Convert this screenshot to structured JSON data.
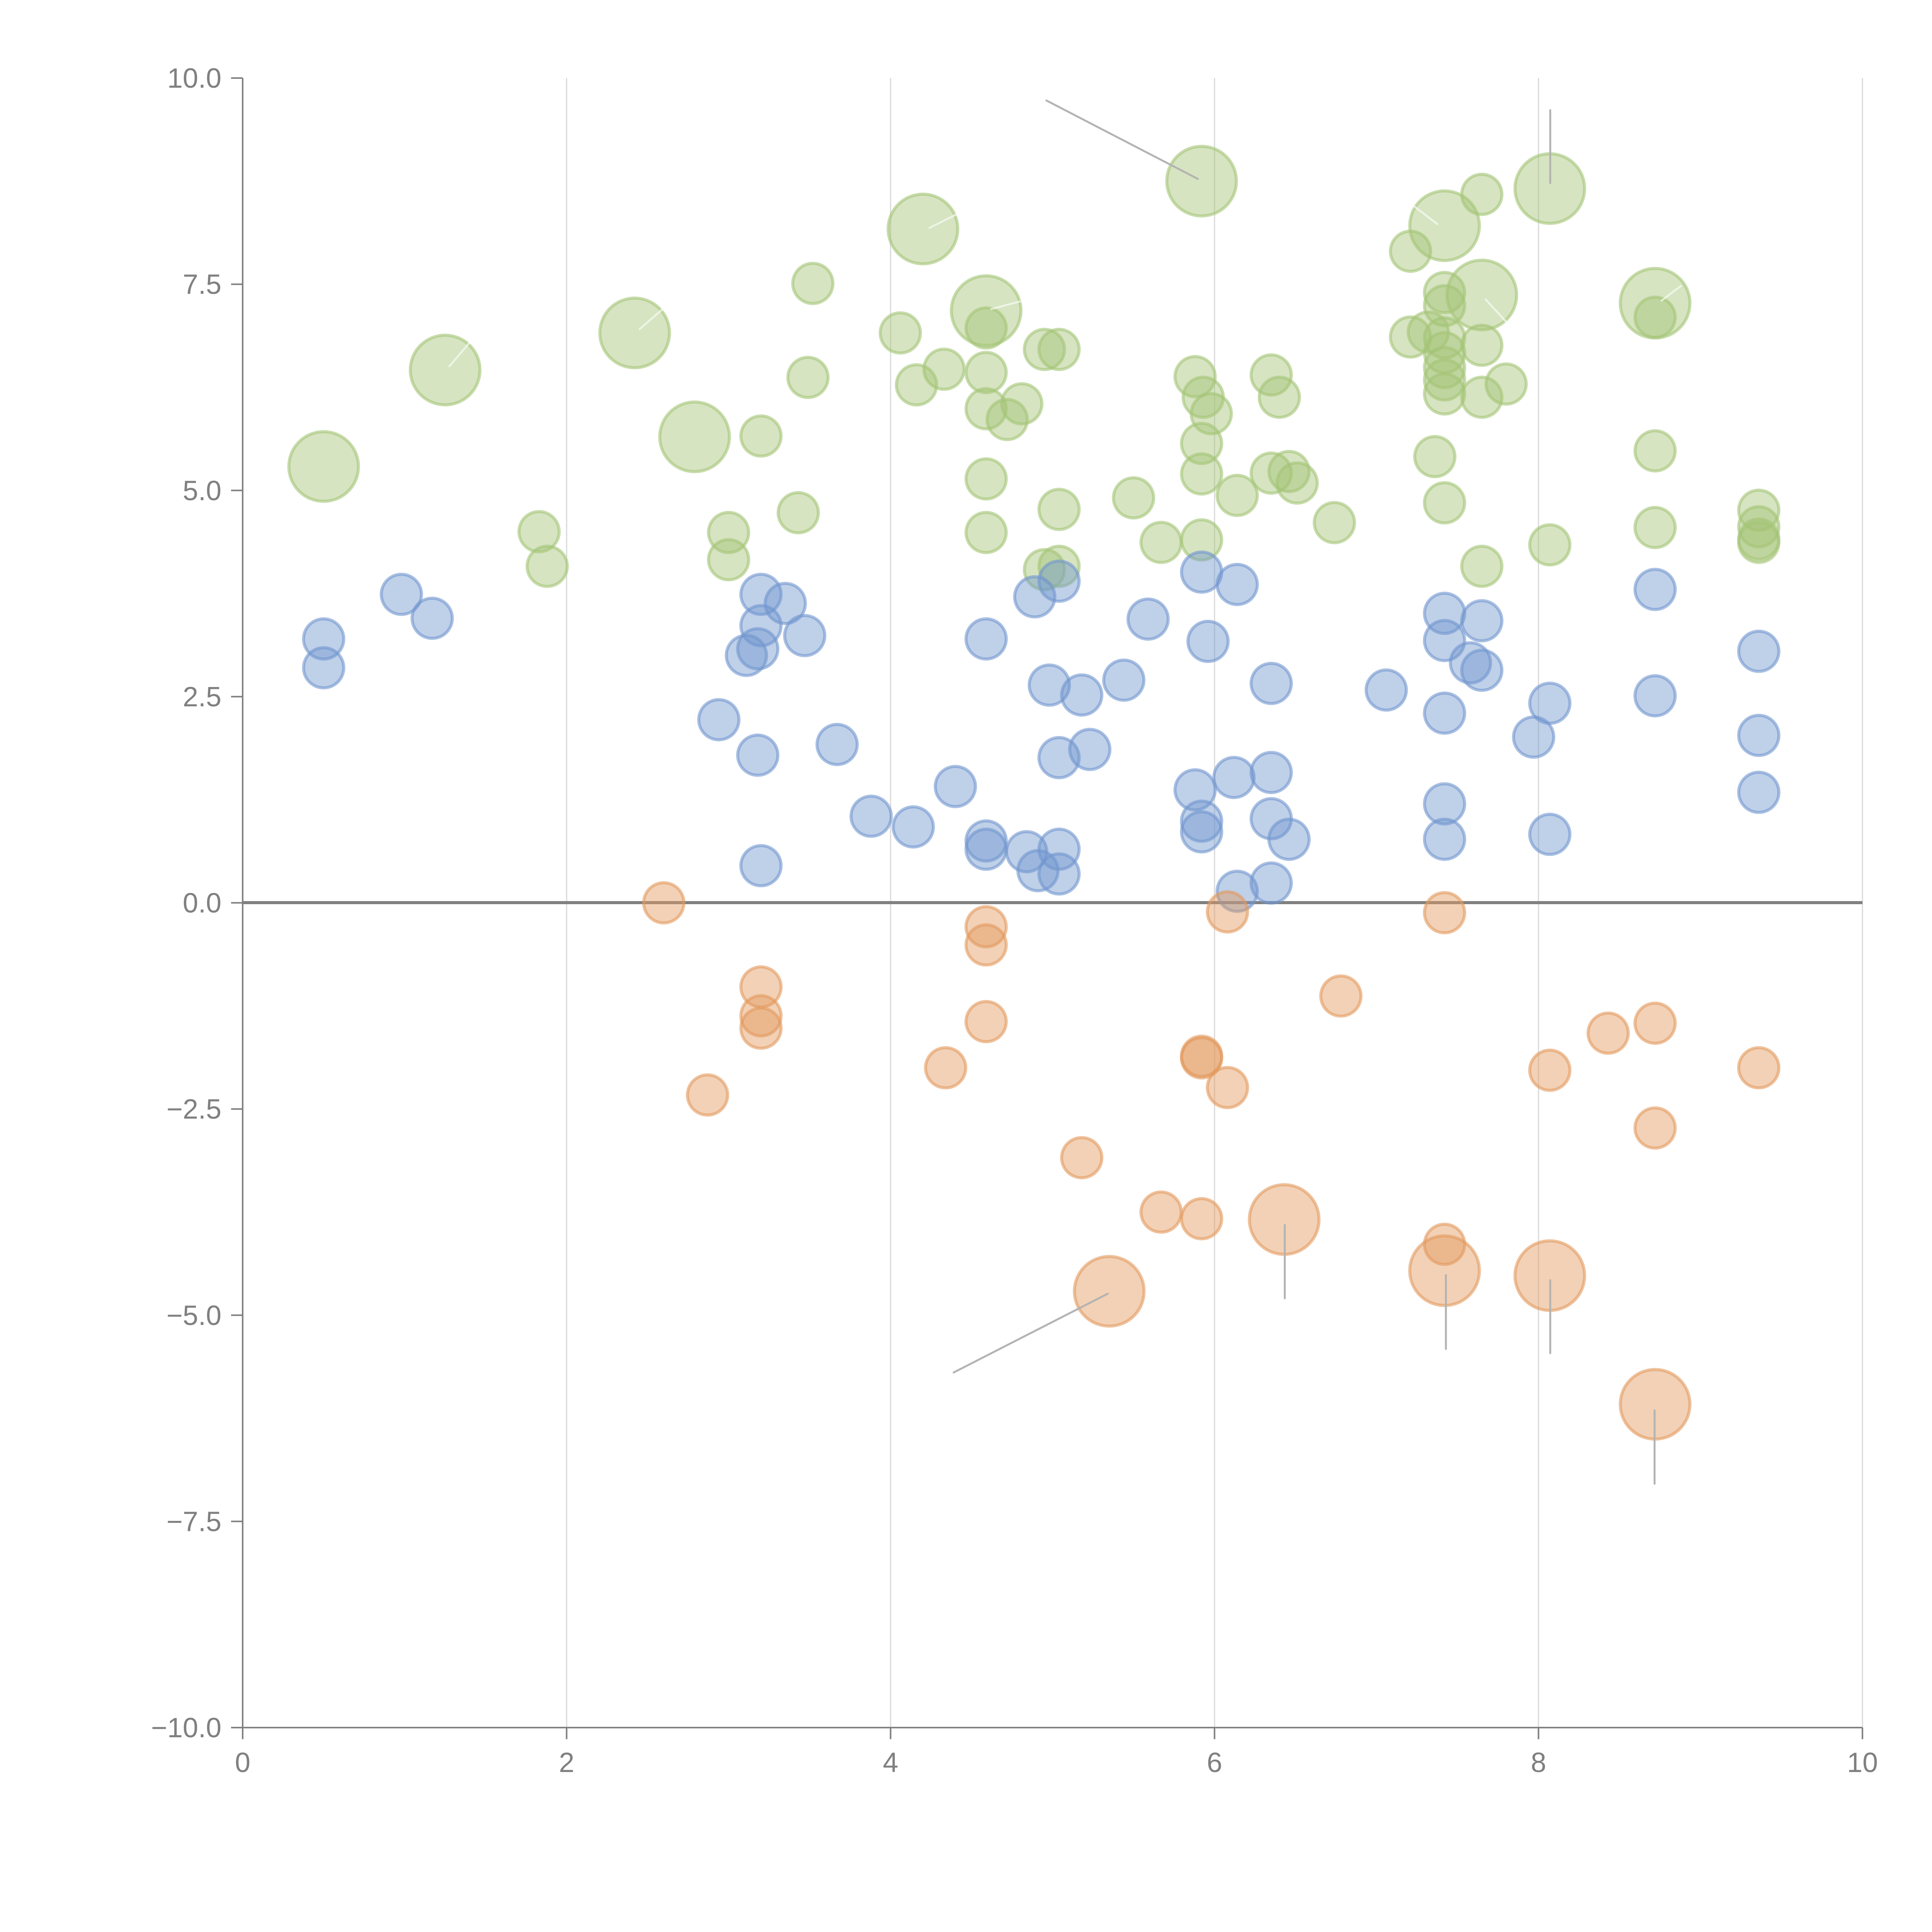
{
  "chart_data": {
    "type": "scatter",
    "title": "",
    "xlabel": "",
    "ylabel": "",
    "xlim": [
      0,
      10
    ],
    "ylim": [
      -10,
      10
    ],
    "grid": "vertical",
    "x_ticks": [
      "0",
      "2",
      "4",
      "6",
      "8",
      "10"
    ],
    "x_tick_values": [
      0,
      2,
      4,
      6,
      8,
      10
    ],
    "y_ticks": [
      "10.0",
      "7.5",
      "5.0",
      "2.5",
      "0.0",
      "−2.5",
      "−5.0",
      "−7.5",
      "−10.0"
    ],
    "y_tick_values": [
      10,
      7.5,
      5,
      2.5,
      0,
      -2.5,
      -5,
      -7.5,
      -10
    ],
    "series": [
      {
        "name": "green",
        "color": "#a3c476",
        "points": [
          [
            0.5,
            5.29,
            3
          ],
          [
            1.25,
            6.46,
            3
          ],
          [
            2.42,
            6.91,
            3
          ],
          [
            2.79,
            5.65,
            3
          ],
          [
            4.2,
            8.17,
            3
          ],
          [
            4.59,
            7.18,
            3
          ],
          [
            5.92,
            8.75,
            3
          ],
          [
            7.42,
            8.21,
            3
          ],
          [
            7.65,
            7.37,
            3
          ],
          [
            8.07,
            8.66,
            3
          ],
          [
            8.72,
            7.27,
            3
          ],
          [
            1.83,
            4.5,
            1
          ],
          [
            1.88,
            4.08,
            1
          ],
          [
            3.0,
            4.49,
            1
          ],
          [
            3.0,
            4.16,
            1
          ],
          [
            3.2,
            5.66,
            1
          ],
          [
            3.43,
            4.73,
            1
          ],
          [
            3.49,
            6.37,
            1
          ],
          [
            3.52,
            7.51,
            1
          ],
          [
            4.06,
            6.91,
            1
          ],
          [
            4.16,
            6.28,
            1
          ],
          [
            4.33,
            6.47,
            1
          ],
          [
            4.59,
            6.97,
            1
          ],
          [
            4.59,
            6.43,
            1
          ],
          [
            4.59,
            5.99,
            1
          ],
          [
            4.59,
            5.14,
            1
          ],
          [
            4.59,
            4.49,
            1
          ],
          [
            4.72,
            5.86,
            1
          ],
          [
            4.81,
            6.05,
            1
          ],
          [
            4.95,
            6.71,
            1
          ],
          [
            5.04,
            6.71,
            1
          ],
          [
            5.04,
            4.77,
            1
          ],
          [
            4.95,
            4.04,
            1
          ],
          [
            5.04,
            4.08,
            1
          ],
          [
            5.5,
            4.91,
            1
          ],
          [
            5.67,
            4.37,
            1
          ],
          [
            5.88,
            6.38,
            1
          ],
          [
            5.93,
            6.13,
            1
          ],
          [
            5.98,
            5.93,
            1
          ],
          [
            5.92,
            5.57,
            1
          ],
          [
            5.92,
            5.2,
            1
          ],
          [
            5.92,
            4.4,
            1
          ],
          [
            6.14,
            4.94,
            1
          ],
          [
            6.35,
            6.4,
            1
          ],
          [
            6.4,
            6.13,
            1
          ],
          [
            6.35,
            5.21,
            1
          ],
          [
            6.46,
            5.23,
            1
          ],
          [
            6.51,
            5.09,
            1
          ],
          [
            6.74,
            4.61,
            1
          ],
          [
            7.21,
            7.9,
            1
          ],
          [
            7.21,
            6.86,
            1
          ],
          [
            7.32,
            6.92,
            1
          ],
          [
            7.42,
            7.4,
            1
          ],
          [
            7.42,
            7.24,
            1
          ],
          [
            7.42,
            6.85,
            1
          ],
          [
            7.42,
            6.67,
            1
          ],
          [
            7.42,
            6.49,
            1
          ],
          [
            7.42,
            6.34,
            1
          ],
          [
            7.42,
            6.17,
            1
          ],
          [
            7.36,
            5.41,
            1
          ],
          [
            7.42,
            4.85,
            1
          ],
          [
            7.65,
            8.59,
            1
          ],
          [
            7.65,
            6.76,
            1
          ],
          [
            7.65,
            6.13,
            1
          ],
          [
            7.8,
            6.29,
            1
          ],
          [
            7.65,
            4.08,
            1
          ],
          [
            8.07,
            4.34,
            1
          ],
          [
            8.72,
            7.1,
            1
          ],
          [
            8.72,
            5.48,
            1
          ],
          [
            8.72,
            4.55,
            1
          ],
          [
            9.36,
            4.76,
            1
          ],
          [
            9.36,
            4.56,
            1
          ],
          [
            9.36,
            4.41,
            1
          ],
          [
            9.36,
            4.37,
            1
          ]
        ]
      },
      {
        "name": "blue",
        "color": "#7196cf",
        "points": [
          [
            0.5,
            3.2,
            1
          ],
          [
            0.5,
            2.85,
            1
          ],
          [
            0.98,
            3.74,
            1
          ],
          [
            1.17,
            3.45,
            1
          ],
          [
            2.94,
            2.22,
            1
          ],
          [
            3.11,
            3.0,
            1
          ],
          [
            3.18,
            3.08,
            1
          ],
          [
            3.2,
            3.74,
            1
          ],
          [
            3.2,
            3.36,
            1
          ],
          [
            3.35,
            3.63,
            1
          ],
          [
            3.47,
            3.24,
            1
          ],
          [
            3.18,
            1.79,
            1
          ],
          [
            3.67,
            1.92,
            1
          ],
          [
            3.2,
            0.45,
            1
          ],
          [
            3.88,
            1.05,
            1
          ],
          [
            4.14,
            0.92,
            1
          ],
          [
            4.4,
            1.41,
            1
          ],
          [
            4.59,
            3.2,
            1
          ],
          [
            4.59,
            0.75,
            1
          ],
          [
            4.59,
            0.65,
            1
          ],
          [
            4.84,
            0.62,
            1
          ],
          [
            4.91,
            0.39,
            1
          ],
          [
            5.04,
            0.65,
            1
          ],
          [
            5.04,
            0.35,
            1
          ],
          [
            4.89,
            3.71,
            1
          ],
          [
            5.04,
            3.9,
            1
          ],
          [
            4.98,
            2.64,
            1
          ],
          [
            5.18,
            2.52,
            1
          ],
          [
            5.04,
            1.76,
            1
          ],
          [
            5.23,
            1.86,
            1
          ],
          [
            5.44,
            2.7,
            1
          ],
          [
            5.59,
            3.44,
            1
          ],
          [
            5.88,
            1.37,
            1
          ],
          [
            5.92,
            0.99,
            1
          ],
          [
            5.92,
            0.86,
            1
          ],
          [
            5.92,
            4.01,
            1
          ],
          [
            5.96,
            3.17,
            1
          ],
          [
            6.14,
            3.86,
            1
          ],
          [
            6.12,
            1.52,
            1
          ],
          [
            6.14,
            0.14,
            1
          ],
          [
            6.35,
            2.66,
            1
          ],
          [
            6.35,
            1.58,
            1
          ],
          [
            6.35,
            1.02,
            1
          ],
          [
            6.35,
            0.24,
            1
          ],
          [
            6.46,
            0.77,
            1
          ],
          [
            7.06,
            2.58,
            1
          ],
          [
            7.42,
            3.51,
            1
          ],
          [
            7.42,
            3.18,
            1
          ],
          [
            7.42,
            2.3,
            1
          ],
          [
            7.42,
            1.2,
            1
          ],
          [
            7.42,
            0.77,
            1
          ],
          [
            7.58,
            2.91,
            1
          ],
          [
            7.65,
            3.42,
            1
          ],
          [
            7.65,
            2.82,
            1
          ],
          [
            7.97,
            2.01,
            1
          ],
          [
            8.07,
            2.42,
            1
          ],
          [
            8.07,
            0.83,
            1
          ],
          [
            8.72,
            3.8,
            1
          ],
          [
            8.72,
            2.51,
            1
          ],
          [
            9.36,
            3.05,
            1
          ],
          [
            9.36,
            2.03,
            1
          ],
          [
            9.36,
            1.34,
            1
          ]
        ]
      },
      {
        "name": "orange",
        "color": "#e39a5e",
        "points": [
          [
            2.6,
            0.0,
            1
          ],
          [
            2.87,
            -2.33,
            1
          ],
          [
            3.2,
            -1.02,
            1
          ],
          [
            3.2,
            -1.37,
            1
          ],
          [
            3.2,
            -1.52,
            1
          ],
          [
            4.34,
            -2.0,
            1
          ],
          [
            4.59,
            -0.29,
            1
          ],
          [
            4.59,
            -0.51,
            1
          ],
          [
            4.59,
            -1.44,
            1
          ],
          [
            5.18,
            -3.09,
            1
          ],
          [
            5.35,
            -4.71,
            3
          ],
          [
            5.67,
            -3.75,
            1
          ],
          [
            5.92,
            -1.86,
            1
          ],
          [
            5.92,
            -1.88,
            1
          ],
          [
            5.92,
            -3.83,
            1
          ],
          [
            6.08,
            -0.11,
            1
          ],
          [
            6.08,
            -2.24,
            1
          ],
          [
            6.43,
            -3.84,
            3
          ],
          [
            6.78,
            -1.13,
            1
          ],
          [
            7.42,
            -0.12,
            1
          ],
          [
            7.42,
            -4.14,
            1
          ],
          [
            7.42,
            -4.46,
            3
          ],
          [
            8.07,
            -4.52,
            3
          ],
          [
            8.43,
            -1.58,
            1
          ],
          [
            8.72,
            -1.46,
            1
          ],
          [
            8.72,
            -2.73,
            1
          ],
          [
            8.72,
            -6.08,
            3
          ],
          [
            9.36,
            -2.0,
            1
          ],
          [
            8.07,
            -2.03,
            1
          ]
        ]
      }
    ]
  }
}
